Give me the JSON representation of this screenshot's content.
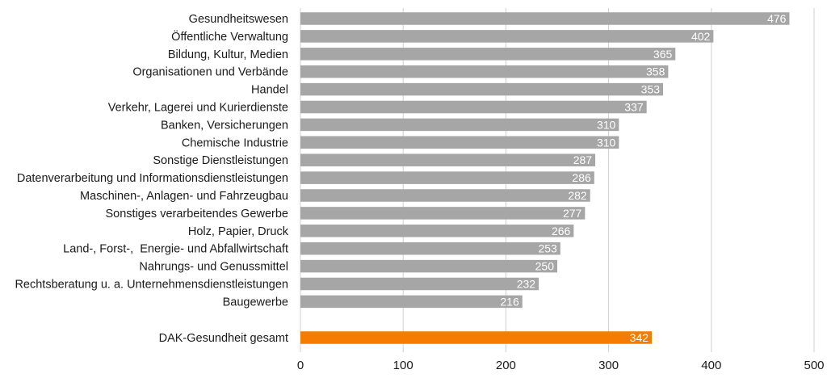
{
  "chart_data": {
    "type": "bar",
    "orientation": "horizontal",
    "categories": [
      "Gesundheitswesen",
      "Öffentliche Verwaltung",
      "Bildung, Kultur, Medien",
      "Organisationen und Verbände",
      "Handel",
      "Verkehr, Lagerei und Kurierdienste",
      "Banken, Versicherungen",
      "Chemische Industrie",
      "Sonstige Dienstleistungen",
      "Datenverarbeitung und Informationsdienstleistungen",
      "Maschinen-, Anlagen- und Fahrzeugbau",
      "Sonstiges verarbeitendes Gewerbe",
      "Holz, Papier, Druck",
      "Land-, Forst-,  Energie- und Abfallwirtschaft",
      "Nahrungs- und Genussmittel",
      "Rechtsberatung u. a. Unternehmensdienstleistungen",
      "Baugewerbe"
    ],
    "values": [
      476,
      402,
      365,
      358,
      353,
      337,
      310,
      310,
      287,
      286,
      282,
      277,
      266,
      253,
      250,
      232,
      216
    ],
    "total": {
      "label": "DAK-Gesundheit gesamt",
      "value": 342
    },
    "xlim": [
      0,
      500
    ],
    "xticks": [
      0,
      100,
      200,
      300,
      400,
      500
    ],
    "gridlines": "vertical",
    "colors": {
      "bar": "#a6a6a6",
      "total": "#f57c00",
      "label": "#ffffff"
    }
  }
}
